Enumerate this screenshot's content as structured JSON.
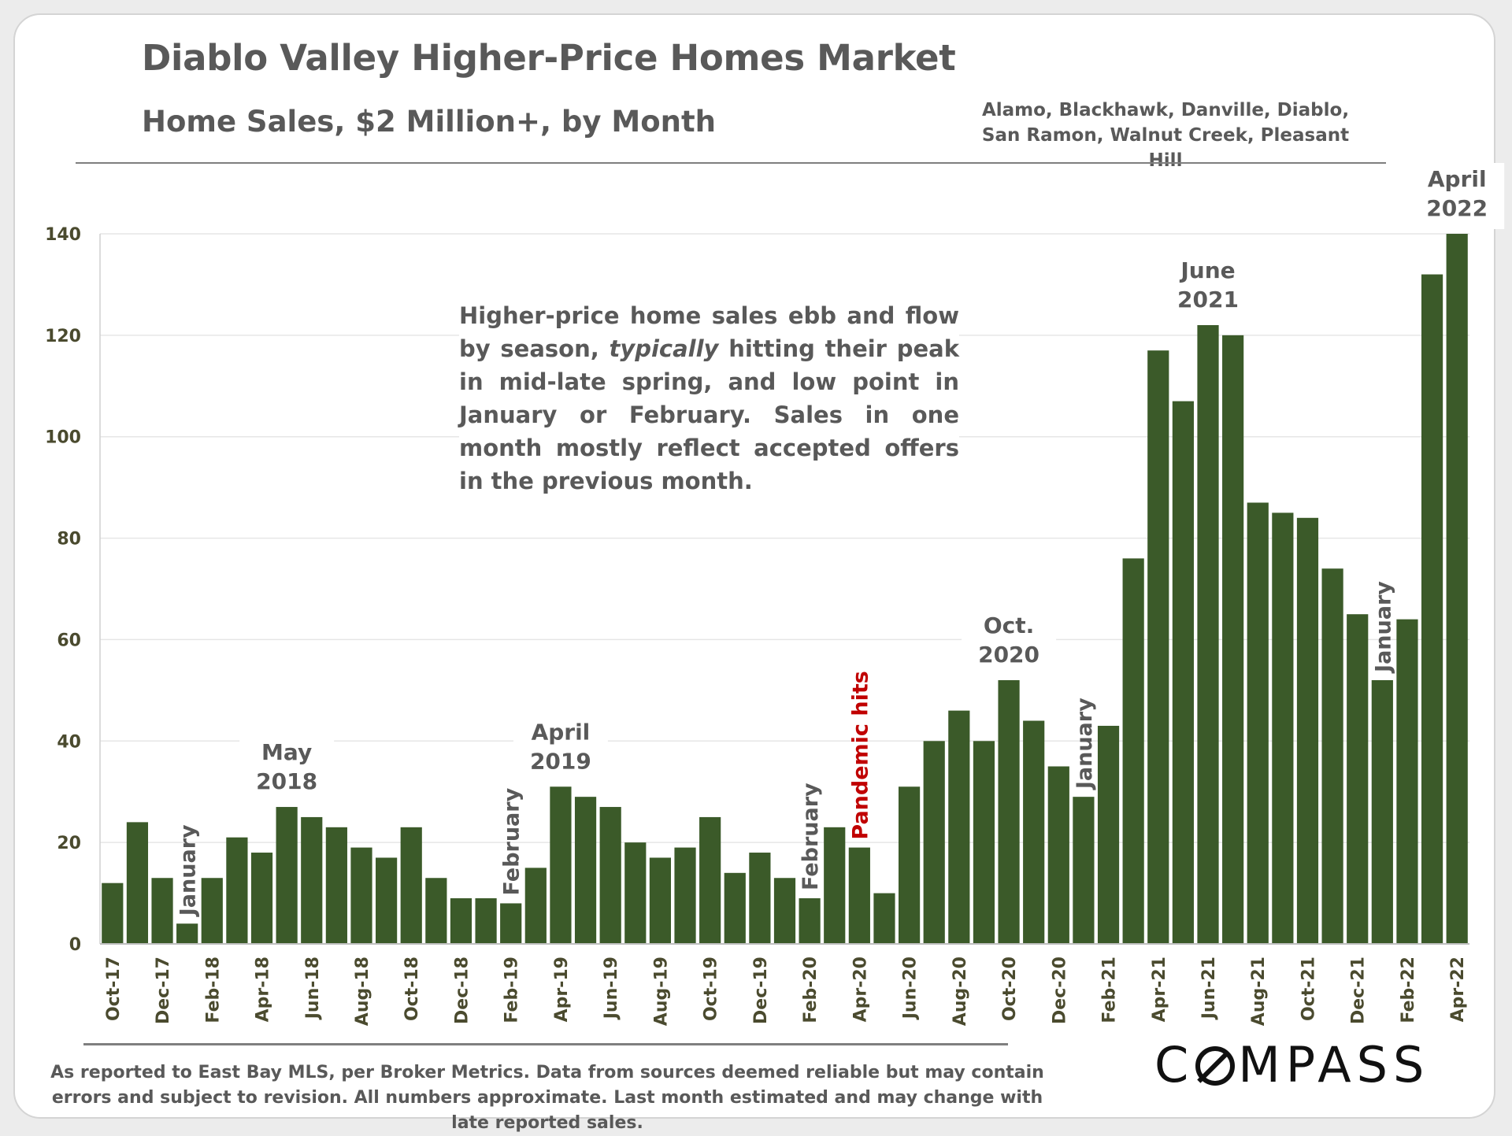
{
  "header": {
    "title": "Diablo Valley Higher-Price Homes Market",
    "subtitle": "Home Sales, $2 Million+, by Month",
    "region": "Alamo, Blackhawk, Danville, Diablo, San Ramon, Walnut Creek, Pleasant Hill"
  },
  "callout": {
    "part1": "Higher-price home sales ebb and flow by season, ",
    "emphasis": "typically",
    "part2": " hitting their peak in mid-late spring, and low point in January or February. Sales in one month mostly reflect accepted offers in the previous month."
  },
  "footer": {
    "note": "As reported to East Bay MLS, per Broker Metrics. Data from sources deemed reliable but may contain errors and subject to revision. All numbers approximate. Last month estimated and may change with late reported sales.",
    "brand_first": "C",
    "brand_rest": "MPASS"
  },
  "colors": {
    "bar": "#3b5a29",
    "axis_text": "#4a4a2e",
    "annotation": "#595959",
    "pandemic": "#c00000",
    "grid": "#e6e6e6"
  },
  "chart_data": {
    "type": "bar",
    "title": "Home Sales, $2 Million+, by Month",
    "xlabel": "",
    "ylabel": "",
    "ylim": [
      0,
      140
    ],
    "yticks": [
      0,
      20,
      40,
      60,
      80,
      100,
      120,
      140
    ],
    "grid": true,
    "categories": [
      "Oct-17",
      "Nov-17",
      "Dec-17",
      "Jan-18",
      "Feb-18",
      "Mar-18",
      "Apr-18",
      "May-18",
      "Jun-18",
      "Jul-18",
      "Aug-18",
      "Sep-18",
      "Oct-18",
      "Nov-18",
      "Dec-18",
      "Jan-19",
      "Feb-19",
      "Mar-19",
      "Apr-19",
      "May-19",
      "Jun-19",
      "Jul-19",
      "Aug-19",
      "Sep-19",
      "Oct-19",
      "Nov-19",
      "Dec-19",
      "Jan-20",
      "Feb-20",
      "Mar-20",
      "Apr-20",
      "May-20",
      "Jun-20",
      "Jul-20",
      "Aug-20",
      "Sep-20",
      "Oct-20",
      "Nov-20",
      "Dec-20",
      "Jan-21",
      "Feb-21",
      "Mar-21",
      "Apr-21",
      "May-21",
      "Jun-21",
      "Jul-21",
      "Aug-21",
      "Sep-21",
      "Oct-21",
      "Nov-21",
      "Dec-21",
      "Jan-22",
      "Feb-22",
      "Mar-22",
      "Apr-22"
    ],
    "values": [
      12,
      24,
      13,
      4,
      13,
      21,
      18,
      27,
      25,
      23,
      19,
      17,
      23,
      13,
      9,
      9,
      8,
      15,
      31,
      29,
      27,
      20,
      17,
      19,
      25,
      14,
      18,
      13,
      9,
      23,
      19,
      10,
      31,
      40,
      46,
      40,
      52,
      44,
      35,
      29,
      43,
      76,
      117,
      107,
      122,
      120,
      87,
      85,
      84,
      74,
      65,
      52,
      64,
      132,
      140
    ],
    "tick_labels": [
      "Oct-17",
      "Dec-17",
      "Feb-18",
      "Apr-18",
      "Jun-18",
      "Aug-18",
      "Oct-18",
      "Dec-18",
      "Feb-19",
      "Apr-19",
      "Jun-19",
      "Aug-19",
      "Oct-19",
      "Dec-19",
      "Feb-20",
      "Apr-20",
      "Jun-20",
      "Aug-20",
      "Oct-20",
      "Dec-20",
      "Feb-21",
      "Apr-21",
      "Jun-21",
      "Aug-21",
      "Oct-21",
      "Dec-21",
      "Feb-22",
      "Apr-22"
    ],
    "annotations": [
      {
        "text": "January",
        "bar": "Jan-18",
        "rotated": true
      },
      {
        "text": "February",
        "bar": "Feb-19",
        "rotated": true
      },
      {
        "text": "February",
        "bar": "Feb-20",
        "rotated": true
      },
      {
        "text": "Pandemic hits",
        "bar": "Apr-20",
        "rotated": true,
        "highlight": true
      },
      {
        "text": "January",
        "bar": "Jan-21",
        "rotated": true
      },
      {
        "text": "January",
        "bar": "Jan-22",
        "rotated": true
      },
      {
        "text": [
          "May",
          "2018"
        ],
        "bar": "May-18",
        "rotated": false
      },
      {
        "text": [
          "April",
          "2019"
        ],
        "bar": "Apr-19",
        "rotated": false
      },
      {
        "text": [
          "Oct.",
          "2020"
        ],
        "bar": "Oct-20",
        "rotated": false
      },
      {
        "text": [
          "June",
          "2021"
        ],
        "bar": "Jun-21",
        "rotated": false
      },
      {
        "text": [
          "April",
          "2022"
        ],
        "bar": "Apr-22",
        "rotated": false
      }
    ]
  }
}
